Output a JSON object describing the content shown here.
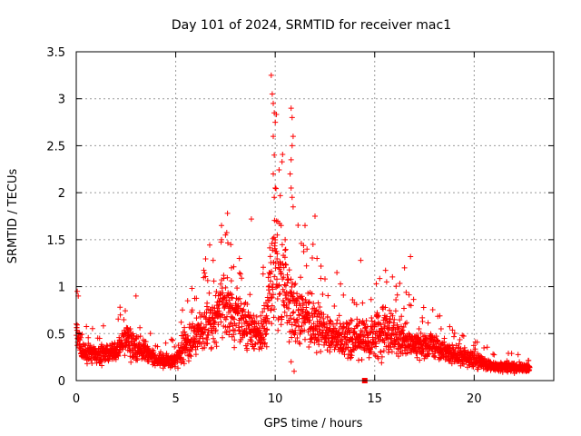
{
  "chart_data": {
    "type": "scatter",
    "title": "Day 101 of 2024, SRMTID for receiver mac1",
    "xlabel": "GPS time / hours",
    "ylabel": "SRMTID / TECUs",
    "xlim": [
      0,
      24
    ],
    "ylim": [
      0,
      3.5
    ],
    "xticks": [
      "0",
      "5",
      "10",
      "15",
      "20"
    ],
    "yticks": [
      "0",
      "0.5",
      "1",
      "1.5",
      "2",
      "2.5",
      "3",
      "3.5"
    ],
    "grid": true,
    "marker": "+",
    "color": "#ff0000",
    "profile": {
      "hours": [
        0,
        0.3,
        1,
        2,
        2.5,
        3,
        3.5,
        4,
        5,
        5.5,
        6,
        7,
        7.5,
        8,
        9,
        9.5,
        9.8,
        10,
        10.5,
        11,
        12,
        13,
        14,
        15,
        15.5,
        16,
        17,
        18,
        19,
        20,
        21,
        22,
        22.8
      ],
      "median": [
        0.5,
        0.3,
        0.28,
        0.3,
        0.45,
        0.35,
        0.3,
        0.22,
        0.22,
        0.4,
        0.45,
        0.7,
        0.85,
        0.65,
        0.5,
        0.55,
        1.0,
        1.15,
        0.9,
        0.75,
        0.6,
        0.45,
        0.45,
        0.45,
        0.55,
        0.5,
        0.4,
        0.35,
        0.28,
        0.22,
        0.15,
        0.15,
        0.12
      ],
      "spread": [
        0.25,
        0.15,
        0.15,
        0.15,
        0.25,
        0.2,
        0.15,
        0.1,
        0.12,
        0.25,
        0.3,
        0.5,
        0.6,
        0.45,
        0.3,
        0.35,
        0.9,
        0.9,
        0.8,
        0.5,
        0.4,
        0.3,
        0.3,
        0.35,
        0.4,
        0.3,
        0.25,
        0.2,
        0.15,
        0.12,
        0.08,
        0.08,
        0.06
      ],
      "samples_per_hour": 110
    },
    "peaks": [
      {
        "x": 9.8,
        "y": 3.25
      },
      {
        "x": 9.85,
        "y": 3.05
      },
      {
        "x": 9.9,
        "y": 2.95
      },
      {
        "x": 9.95,
        "y": 2.85
      },
      {
        "x": 10.0,
        "y": 2.75
      },
      {
        "x": 9.9,
        "y": 2.6
      },
      {
        "x": 9.95,
        "y": 2.4
      },
      {
        "x": 9.9,
        "y": 2.2
      },
      {
        "x": 10.0,
        "y": 2.05
      },
      {
        "x": 9.95,
        "y": 1.95
      },
      {
        "x": 10.05,
        "y": 1.7
      },
      {
        "x": 10.1,
        "y": 1.55
      },
      {
        "x": 10.8,
        "y": 2.9
      },
      {
        "x": 10.85,
        "y": 2.8
      },
      {
        "x": 10.9,
        "y": 2.6
      },
      {
        "x": 10.85,
        "y": 2.5
      },
      {
        "x": 10.8,
        "y": 2.35
      },
      {
        "x": 10.75,
        "y": 2.2
      },
      {
        "x": 10.8,
        "y": 2.05
      },
      {
        "x": 10.85,
        "y": 1.95
      },
      {
        "x": 10.9,
        "y": 1.85
      },
      {
        "x": 11.5,
        "y": 1.65
      },
      {
        "x": 11.6,
        "y": 1.4
      },
      {
        "x": 12.0,
        "y": 1.75
      },
      {
        "x": 11.9,
        "y": 1.45
      },
      {
        "x": 12.1,
        "y": 1.3
      },
      {
        "x": 7.6,
        "y": 1.78
      },
      {
        "x": 7.5,
        "y": 1.55
      },
      {
        "x": 7.3,
        "y": 1.5
      },
      {
        "x": 7.8,
        "y": 1.2
      },
      {
        "x": 8.2,
        "y": 1.3
      },
      {
        "x": 8.8,
        "y": 1.72
      },
      {
        "x": 10.3,
        "y": 1.65
      },
      {
        "x": 10.5,
        "y": 1.5
      },
      {
        "x": 16.8,
        "y": 1.32
      },
      {
        "x": 16.5,
        "y": 1.2
      },
      {
        "x": 14.3,
        "y": 1.28
      },
      {
        "x": 13.1,
        "y": 1.15
      },
      {
        "x": 3.0,
        "y": 0.9
      },
      {
        "x": 2.2,
        "y": 0.78
      },
      {
        "x": 0.05,
        "y": 0.95
      },
      {
        "x": 0.1,
        "y": 0.9
      },
      {
        "x": 5.6,
        "y": 0.85
      },
      {
        "x": 15.6,
        "y": 1.05
      },
      {
        "x": 10.8,
        "y": 0.2
      },
      {
        "x": 10.95,
        "y": 0.1
      }
    ],
    "square_marker": {
      "x": 14.5,
      "y": 0.0
    }
  }
}
